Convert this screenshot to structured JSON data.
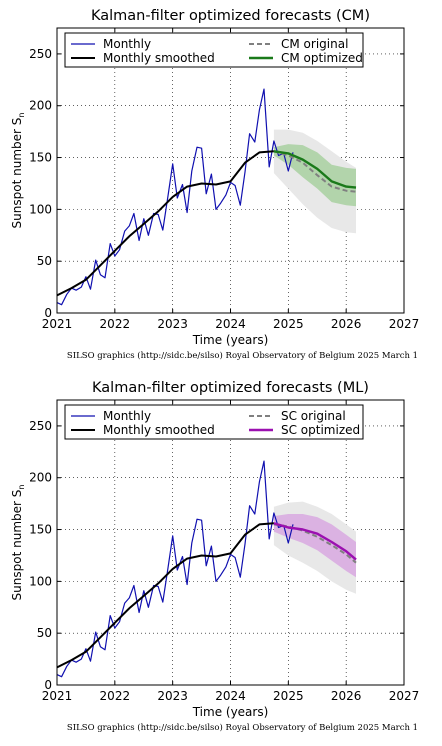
{
  "chart_data": [
    {
      "type": "line",
      "title": "Kalman-filter optimized forecasts (CM)",
      "xlabel": "Time (years)",
      "ylabel": "Sunspot number S",
      "ylabel_subscript": "n",
      "xlim": [
        2021,
        2027
      ],
      "ylim": [
        0,
        275
      ],
      "xticks": [
        "2021",
        "2022",
        "2023",
        "2024",
        "2025",
        "2026",
        "2027"
      ],
      "yticks": [
        "0",
        "50",
        "100",
        "150",
        "200",
        "250"
      ],
      "grid": true,
      "legend_position": "top",
      "credit": "SILSO graphics (http://sidc.be/silso)  Royal Observatory of Belgium  2025 March 1",
      "legend": {
        "monthly": "Monthly",
        "smoothed": "Monthly smoothed",
        "original": "CM original",
        "optimized": "CM optimized"
      },
      "colors": {
        "monthly": "#1010b0",
        "smoothed": "#000000",
        "original": "#808080",
        "optimized": "#1a7a1a",
        "band_inner": "#a8d0a0",
        "band_outer": "#e8e8e8"
      },
      "series": [
        {
          "name": "Monthly",
          "x": [
            2021.0,
            2021.08,
            2021.17,
            2021.25,
            2021.33,
            2021.42,
            2021.5,
            2021.58,
            2021.67,
            2021.75,
            2021.83,
            2021.92,
            2022.0,
            2022.08,
            2022.17,
            2022.25,
            2022.33,
            2022.42,
            2022.5,
            2022.58,
            2022.67,
            2022.75,
            2022.83,
            2022.92,
            2023.0,
            2023.08,
            2023.17,
            2023.25,
            2023.33,
            2023.42,
            2023.5,
            2023.58,
            2023.67,
            2023.75,
            2023.83,
            2023.92,
            2024.0,
            2024.08,
            2024.17,
            2024.25,
            2024.33,
            2024.42,
            2024.5,
            2024.58,
            2024.67,
            2024.75,
            2024.83,
            2024.92,
            2025.0,
            2025.08
          ],
          "values": [
            10,
            8,
            18,
            24,
            22,
            25,
            35,
            23,
            51,
            37,
            34,
            67,
            55,
            61,
            79,
            84,
            96,
            70,
            91,
            75,
            96,
            95,
            80,
            113,
            144,
            111,
            124,
            97,
            137,
            160,
            159,
            115,
            134,
            100,
            106,
            114,
            126,
            123,
            104,
            136,
            173,
            165,
            196,
            216,
            141,
            166,
            152,
            154,
            137,
            155
          ]
        },
        {
          "name": "Monthly smoothed",
          "x": [
            2021.0,
            2021.25,
            2021.5,
            2021.75,
            2022.0,
            2022.25,
            2022.5,
            2022.75,
            2023.0,
            2023.25,
            2023.5,
            2023.75,
            2024.0,
            2024.25,
            2024.5,
            2024.75
          ],
          "values": [
            17,
            24,
            32,
            46,
            60,
            74,
            86,
            98,
            112,
            122,
            125,
            124,
            127,
            145,
            155,
            156
          ]
        },
        {
          "name": "CM original",
          "x": [
            2024.75,
            2025.0,
            2025.25,
            2025.5,
            2025.75,
            2026.0,
            2026.17
          ],
          "values": [
            156,
            152,
            145,
            133,
            122,
            118,
            117
          ]
        },
        {
          "name": "CM optimized",
          "x": [
            2024.75,
            2025.0,
            2025.25,
            2025.5,
            2025.75,
            2026.0,
            2026.17
          ],
          "values": [
            156,
            154,
            148,
            139,
            127,
            122,
            121
          ]
        }
      ],
      "bands": [
        {
          "x": [
            2024.75,
            2025.0,
            2025.25,
            2025.5,
            2025.75,
            2026.0,
            2026.17
          ],
          "lower": [
            135,
            120,
            105,
            92,
            82,
            78,
            77
          ],
          "upper": [
            177,
            177,
            174,
            166,
            156,
            146,
            140
          ]
        },
        {
          "x": [
            2024.75,
            2025.0,
            2025.25,
            2025.5,
            2025.75,
            2026.0,
            2026.17
          ],
          "lower": [
            152,
            143,
            131,
            120,
            107,
            104,
            103
          ],
          "upper": [
            160,
            163,
            162,
            155,
            143,
            140,
            139
          ]
        }
      ]
    },
    {
      "type": "line",
      "title": "Kalman-filter optimized forecasts (ML)",
      "xlabel": "Time (years)",
      "ylabel": "Sunspot number S",
      "ylabel_subscript": "n",
      "xlim": [
        2021,
        2027
      ],
      "ylim": [
        0,
        275
      ],
      "xticks": [
        "2021",
        "2022",
        "2023",
        "2024",
        "2025",
        "2026",
        "2027"
      ],
      "yticks": [
        "0",
        "50",
        "100",
        "150",
        "200",
        "250"
      ],
      "grid": true,
      "legend_position": "top",
      "credit": "SILSO graphics (http://sidc.be/silso)  Royal Observatory of Belgium  2025 March 1",
      "legend": {
        "monthly": "Monthly",
        "smoothed": "Monthly smoothed",
        "original": "SC original",
        "optimized": "SC optimized"
      },
      "colors": {
        "monthly": "#1010b0",
        "smoothed": "#000000",
        "original": "#808080",
        "optimized": "#9b10b0",
        "band_inner": "#d8a8e0",
        "band_outer": "#e8e8e8"
      },
      "series": [
        {
          "name": "Monthly",
          "x": [
            2021.0,
            2021.08,
            2021.17,
            2021.25,
            2021.33,
            2021.42,
            2021.5,
            2021.58,
            2021.67,
            2021.75,
            2021.83,
            2021.92,
            2022.0,
            2022.08,
            2022.17,
            2022.25,
            2022.33,
            2022.42,
            2022.5,
            2022.58,
            2022.67,
            2022.75,
            2022.83,
            2022.92,
            2023.0,
            2023.08,
            2023.17,
            2023.25,
            2023.33,
            2023.42,
            2023.5,
            2023.58,
            2023.67,
            2023.75,
            2023.83,
            2023.92,
            2024.0,
            2024.08,
            2024.17,
            2024.25,
            2024.33,
            2024.42,
            2024.5,
            2024.58,
            2024.67,
            2024.75,
            2024.83,
            2024.92,
            2025.0,
            2025.08
          ],
          "values": [
            10,
            8,
            18,
            24,
            22,
            25,
            35,
            23,
            51,
            37,
            34,
            67,
            55,
            61,
            79,
            84,
            96,
            70,
            91,
            75,
            96,
            95,
            80,
            113,
            144,
            111,
            124,
            97,
            137,
            160,
            159,
            115,
            134,
            100,
            106,
            114,
            126,
            123,
            104,
            136,
            173,
            165,
            196,
            216,
            141,
            166,
            152,
            154,
            137,
            155
          ]
        },
        {
          "name": "Monthly smoothed",
          "x": [
            2021.0,
            2021.25,
            2021.5,
            2021.75,
            2022.0,
            2022.25,
            2022.5,
            2022.75,
            2023.0,
            2023.25,
            2023.5,
            2023.75,
            2024.0,
            2024.25,
            2024.5,
            2024.75
          ],
          "values": [
            17,
            24,
            32,
            46,
            60,
            74,
            86,
            98,
            112,
            122,
            125,
            124,
            127,
            145,
            155,
            156
          ]
        },
        {
          "name": "SC original",
          "x": [
            2024.75,
            2025.0,
            2025.25,
            2025.5,
            2025.75,
            2026.0,
            2026.17
          ],
          "values": [
            155,
            153,
            149,
            143,
            135,
            126,
            118
          ]
        },
        {
          "name": "SC optimized",
          "x": [
            2024.75,
            2025.0,
            2025.25,
            2025.5,
            2025.75,
            2026.0,
            2026.17
          ],
          "values": [
            156,
            152,
            150,
            146,
            138,
            129,
            121
          ]
        }
      ],
      "bands": [
        {
          "x": [
            2024.75,
            2025.0,
            2025.25,
            2025.5,
            2025.75,
            2026.0,
            2026.17
          ],
          "lower": [
            135,
            125,
            118,
            110,
            100,
            92,
            88
          ],
          "upper": [
            172,
            176,
            177,
            172,
            165,
            155,
            148
          ]
        },
        {
          "x": [
            2024.75,
            2025.0,
            2025.25,
            2025.5,
            2025.75,
            2026.0,
            2026.17
          ],
          "lower": [
            148,
            142,
            137,
            130,
            120,
            110,
            104
          ],
          "upper": [
            163,
            165,
            165,
            162,
            155,
            145,
            138
          ]
        }
      ]
    }
  ]
}
